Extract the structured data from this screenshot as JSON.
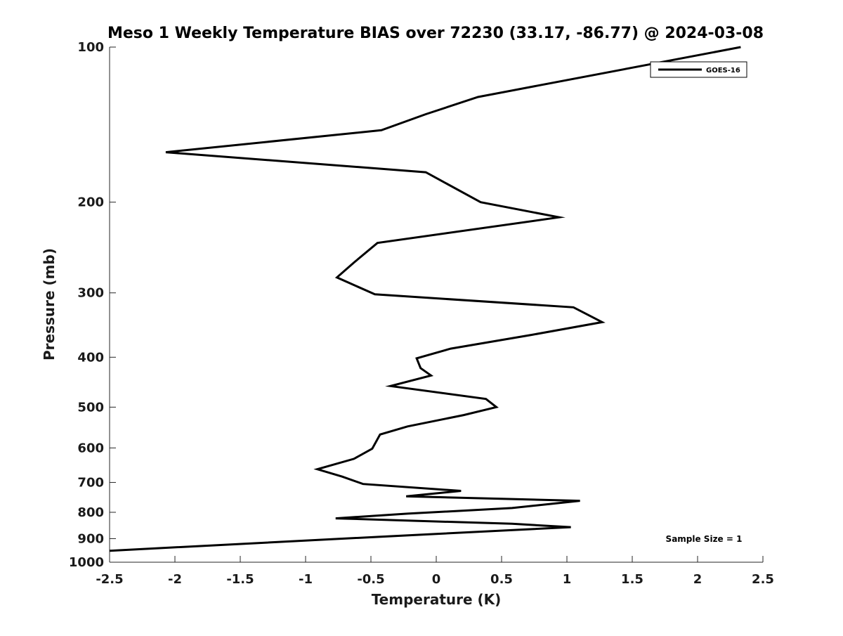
{
  "chart_data": {
    "type": "line",
    "title": "Meso 1 Weekly Temperature BIAS over 72230 (33.17, -86.77) @ 2024-03-08",
    "xlabel": "Temperature (K)",
    "ylabel": "Pressure (mb)",
    "xlim": [
      -2.5,
      2.5
    ],
    "ylim": [
      100,
      1000
    ],
    "y_scale": "log",
    "y_reversed": true,
    "grid": false,
    "legend_position": "top-right",
    "x_ticks": [
      -2.5,
      -2,
      -1.5,
      -1,
      -0.5,
      0,
      0.5,
      1,
      1.5,
      2,
      2.5
    ],
    "x_tick_labels": [
      "-2.5",
      "-2",
      "-1.5",
      "-1",
      "-0.5",
      "0",
      "0.5",
      "1",
      "1.5",
      "2",
      "2.5"
    ],
    "y_ticks": [
      100,
      200,
      300,
      400,
      500,
      600,
      700,
      800,
      900,
      1000
    ],
    "y_tick_labels": [
      "100",
      "200",
      "300",
      "400",
      "500",
      "600",
      "700",
      "800",
      "900",
      "1000"
    ],
    "series": [
      {
        "name": "GOES-16",
        "color": "#000000",
        "points": [
          {
            "x": 2.33,
            "y": 100
          },
          {
            "x": 0.32,
            "y": 125
          },
          {
            "x": -0.08,
            "y": 135
          },
          {
            "x": -0.42,
            "y": 145
          },
          {
            "x": -2.07,
            "y": 160
          },
          {
            "x": -0.08,
            "y": 175
          },
          {
            "x": 0.34,
            "y": 200
          },
          {
            "x": 0.94,
            "y": 214
          },
          {
            "x": -0.45,
            "y": 240
          },
          {
            "x": -0.63,
            "y": 262
          },
          {
            "x": -0.76,
            "y": 280
          },
          {
            "x": -0.47,
            "y": 302
          },
          {
            "x": 1.05,
            "y": 320
          },
          {
            "x": 1.27,
            "y": 342
          },
          {
            "x": 0.73,
            "y": 362
          },
          {
            "x": 0.11,
            "y": 385
          },
          {
            "x": -0.15,
            "y": 402
          },
          {
            "x": -0.12,
            "y": 420
          },
          {
            "x": -0.04,
            "y": 434
          },
          {
            "x": -0.35,
            "y": 455
          },
          {
            "x": 0.38,
            "y": 482
          },
          {
            "x": 0.46,
            "y": 500
          },
          {
            "x": 0.21,
            "y": 518
          },
          {
            "x": -0.22,
            "y": 545
          },
          {
            "x": -0.43,
            "y": 565
          },
          {
            "x": -0.49,
            "y": 602
          },
          {
            "x": -0.63,
            "y": 630
          },
          {
            "x": -0.91,
            "y": 660
          },
          {
            "x": -0.72,
            "y": 682
          },
          {
            "x": -0.56,
            "y": 705
          },
          {
            "x": 0.19,
            "y": 727
          },
          {
            "x": -0.23,
            "y": 745
          },
          {
            "x": 1.1,
            "y": 760
          },
          {
            "x": 0.58,
            "y": 785
          },
          {
            "x": -0.22,
            "y": 805
          },
          {
            "x": -0.77,
            "y": 822
          },
          {
            "x": 0.58,
            "y": 842
          },
          {
            "x": 1.03,
            "y": 855
          },
          {
            "x": -0.72,
            "y": 900
          },
          {
            "x": -2.5,
            "y": 950
          }
        ]
      }
    ],
    "annotations": [
      {
        "text": "Sample Size = 1"
      }
    ]
  }
}
